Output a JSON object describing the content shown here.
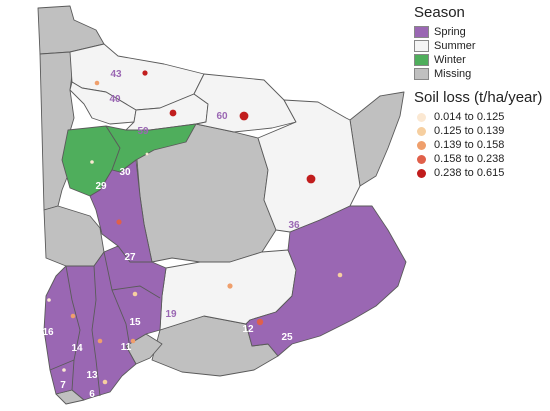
{
  "legend": {
    "season_title": "Season",
    "seasons": [
      {
        "label": "Spring",
        "color": "#9a67b3"
      },
      {
        "label": "Summer",
        "color": "#f4f4f4"
      },
      {
        "label": "Winter",
        "color": "#4fae5c"
      },
      {
        "label": "Missing",
        "color": "#c0c0c0"
      }
    ],
    "soil_title": "Soil loss (t/ha/year)",
    "soil_classes": [
      {
        "label": "0.014 to 0.125",
        "color": "#fbe8d2"
      },
      {
        "label": "0.125 to 0.139",
        "color": "#f6cfa0"
      },
      {
        "label": "0.139 to 0.158",
        "color": "#ef9f6c"
      },
      {
        "label": "0.158 to 0.238",
        "color": "#e0604a"
      },
      {
        "label": "0.238 to 0.615",
        "color": "#c11d1d"
      }
    ]
  },
  "region_labels": [
    "43",
    "40",
    "59",
    "60",
    "29",
    "30",
    "36",
    "27",
    "19",
    "12",
    "25",
    "16",
    "15",
    "14",
    "11",
    "13",
    "7",
    "6"
  ]
}
